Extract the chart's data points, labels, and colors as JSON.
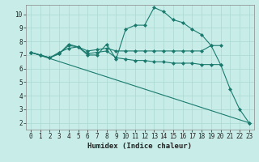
{
  "title": "",
  "xlabel": "Humidex (Indice chaleur)",
  "ylabel": "",
  "background_color": "#c8ede8",
  "grid_color": "#aad8d0",
  "line_color": "#1a7a6e",
  "xlim": [
    -0.5,
    23.5
  ],
  "ylim": [
    1.5,
    10.7
  ],
  "yticks": [
    2,
    3,
    4,
    5,
    6,
    7,
    8,
    9,
    10
  ],
  "xticks": [
    0,
    1,
    2,
    3,
    4,
    5,
    6,
    7,
    8,
    9,
    10,
    11,
    12,
    13,
    14,
    15,
    16,
    17,
    18,
    19,
    20,
    21,
    22,
    23
  ],
  "series": [
    {
      "x": [
        0,
        1,
        2,
        3,
        4,
        5,
        6,
        7,
        8,
        9,
        10,
        11,
        12,
        13,
        14,
        15,
        16,
        17,
        18,
        19,
        20,
        21,
        22,
        23
      ],
      "y": [
        7.2,
        7.0,
        6.8,
        7.1,
        7.8,
        7.6,
        7.0,
        7.0,
        7.8,
        6.7,
        8.9,
        9.2,
        9.2,
        10.5,
        10.2,
        9.6,
        9.4,
        8.9,
        8.5,
        7.7,
        6.3,
        4.5,
        3.0,
        2.0
      ]
    },
    {
      "x": [
        0,
        1,
        2,
        3,
        4,
        5,
        6,
        7,
        8,
        9,
        10,
        11,
        12,
        13,
        14,
        15,
        16,
        17,
        18,
        19,
        20
      ],
      "y": [
        7.2,
        7.0,
        6.8,
        7.2,
        7.5,
        7.6,
        7.3,
        7.4,
        7.5,
        7.3,
        7.3,
        7.3,
        7.3,
        7.3,
        7.3,
        7.3,
        7.3,
        7.3,
        7.3,
        7.7,
        7.7
      ]
    },
    {
      "x": [
        0,
        1,
        2,
        3,
        4,
        5,
        6,
        7,
        8,
        9,
        10,
        11,
        12,
        13,
        14,
        15,
        16,
        17,
        18,
        19,
        20
      ],
      "y": [
        7.2,
        7.0,
        6.8,
        7.1,
        7.7,
        7.6,
        7.1,
        7.2,
        7.3,
        6.8,
        6.7,
        6.6,
        6.6,
        6.5,
        6.5,
        6.4,
        6.4,
        6.4,
        6.3,
        6.3,
        6.3
      ]
    },
    {
      "x": [
        0,
        23
      ],
      "y": [
        7.2,
        2.0
      ]
    }
  ]
}
